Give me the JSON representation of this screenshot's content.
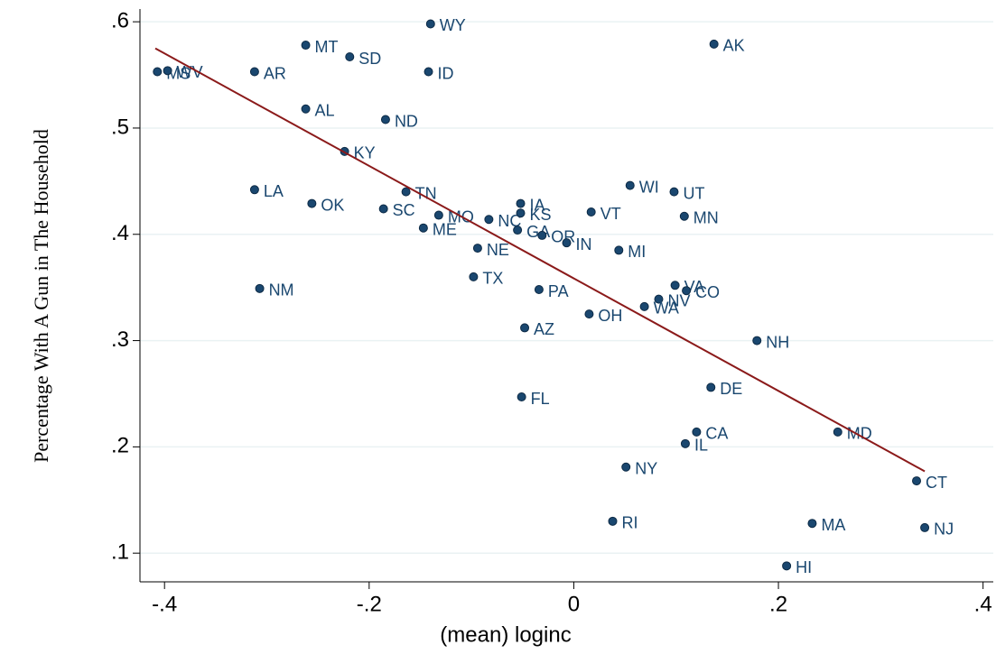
{
  "chart_data": {
    "type": "scatter",
    "x_label": "(mean) loginc",
    "y_label": "Percentage With A Gun in The Household",
    "color": "#1a476f",
    "labels": [
      "MS",
      "WV",
      "AR",
      "MT",
      "SD",
      "WY",
      "ID",
      "AK",
      "AL",
      "ND",
      "KY",
      "LA",
      "OK",
      "SC",
      "TN",
      "MO",
      "ME",
      "NC",
      "IA",
      "KS",
      "GA",
      "OR",
      "IN",
      "VT",
      "WI",
      "UT",
      "MN",
      "MI",
      "NE",
      "TX",
      "PA",
      "VA",
      "CO",
      "NV",
      "WA",
      "OH",
      "AZ",
      "NM",
      "NH",
      "DE",
      "FL",
      "CA",
      "MD",
      "IL",
      "NY",
      "CT",
      "RI",
      "MA",
      "NJ",
      "HI"
    ],
    "x": [
      -0.407,
      -0.397,
      -0.312,
      -0.262,
      -0.219,
      -0.14,
      -0.142,
      0.137,
      -0.262,
      -0.184,
      -0.224,
      -0.312,
      -0.256,
      -0.186,
      -0.164,
      -0.132,
      -0.147,
      -0.083,
      -0.052,
      -0.052,
      -0.055,
      -0.031,
      -0.007,
      0.017,
      0.055,
      0.098,
      0.108,
      0.044,
      -0.094,
      -0.098,
      -0.034,
      0.099,
      0.11,
      0.083,
      0.069,
      0.015,
      -0.048,
      -0.307,
      0.179,
      0.134,
      -0.051,
      0.12,
      0.258,
      0.109,
      0.051,
      0.335,
      0.038,
      0.233,
      0.343,
      0.208
    ],
    "values": [
      0.553,
      0.554,
      0.553,
      0.578,
      0.567,
      0.598,
      0.553,
      0.579,
      0.518,
      0.508,
      0.478,
      0.442,
      0.429,
      0.424,
      0.44,
      0.418,
      0.406,
      0.414,
      0.429,
      0.42,
      0.404,
      0.399,
      0.392,
      0.421,
      0.446,
      0.44,
      0.417,
      0.385,
      0.387,
      0.36,
      0.348,
      0.352,
      0.347,
      0.339,
      0.332,
      0.325,
      0.312,
      0.349,
      0.3,
      0.256,
      0.247,
      0.214,
      0.214,
      0.203,
      0.181,
      0.168,
      0.13,
      0.128,
      0.124,
      0.088
    ],
    "fit": {
      "x": [
        -0.409,
        0.343
      ],
      "values": [
        0.575,
        0.177
      ],
      "color": "#8b1a1a"
    },
    "xlim": [
      -0.424,
      0.41
    ],
    "ylim": [
      0.073,
      0.612
    ],
    "xticks": [
      {
        "value": -0.4,
        "label": "-.4"
      },
      {
        "value": -0.2,
        "label": "-.2"
      },
      0,
      {
        "value": 0.2,
        "label": ".2"
      },
      {
        "value": 0.4,
        "label": ".4"
      }
    ],
    "yticks": [
      {
        "value": 0.1,
        "label": ".1"
      },
      {
        "value": 0.2,
        "label": ".2"
      },
      {
        "value": 0.3,
        "label": ".3"
      },
      {
        "value": 0.4,
        "label": ".4"
      },
      {
        "value": 0.5,
        "label": ".5"
      },
      {
        "value": 0.6,
        "label": ".6"
      }
    ],
    "grid": true
  }
}
